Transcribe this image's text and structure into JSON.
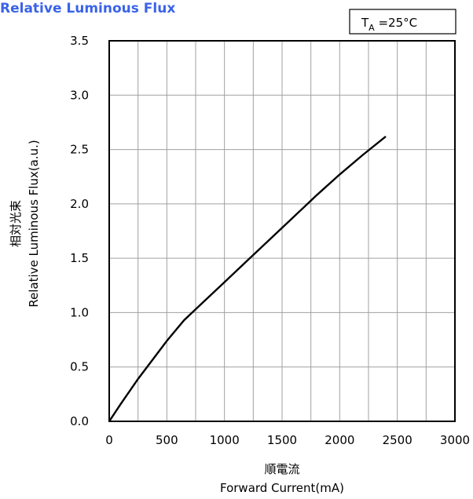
{
  "chart_data": {
    "type": "line",
    "title": "Relative Luminous Flux",
    "annotation": {
      "prefix": "T",
      "sub": "A",
      "suffix": " =25°C"
    },
    "xlabel_cn": "順電流",
    "xlabel": "Forward Current(mA)",
    "ylabel_cn": "相対光束",
    "ylabel": "Relative Luminous Flux(a.u.)",
    "xlim": [
      0,
      3000
    ],
    "ylim": [
      0,
      3.5
    ],
    "x_ticks": [
      "0",
      "500",
      "1000",
      "1500",
      "2000",
      "2500",
      "3000"
    ],
    "y_ticks": [
      "0.0",
      "0.5",
      "1.0",
      "1.5",
      "2.0",
      "2.5",
      "3.0",
      "3.5"
    ],
    "x_grid_step": 250,
    "y_grid_step": 0.5,
    "grid": true,
    "series": [
      {
        "x": [
          0,
          100,
          250,
          400,
          500,
          650,
          800,
          1000,
          1200,
          1400,
          1600,
          1800,
          2000,
          2200,
          2400
        ],
        "y": [
          0.0,
          0.16,
          0.39,
          0.6,
          0.74,
          0.93,
          1.08,
          1.28,
          1.48,
          1.68,
          1.88,
          2.08,
          2.27,
          2.45,
          2.62
        ]
      }
    ]
  }
}
